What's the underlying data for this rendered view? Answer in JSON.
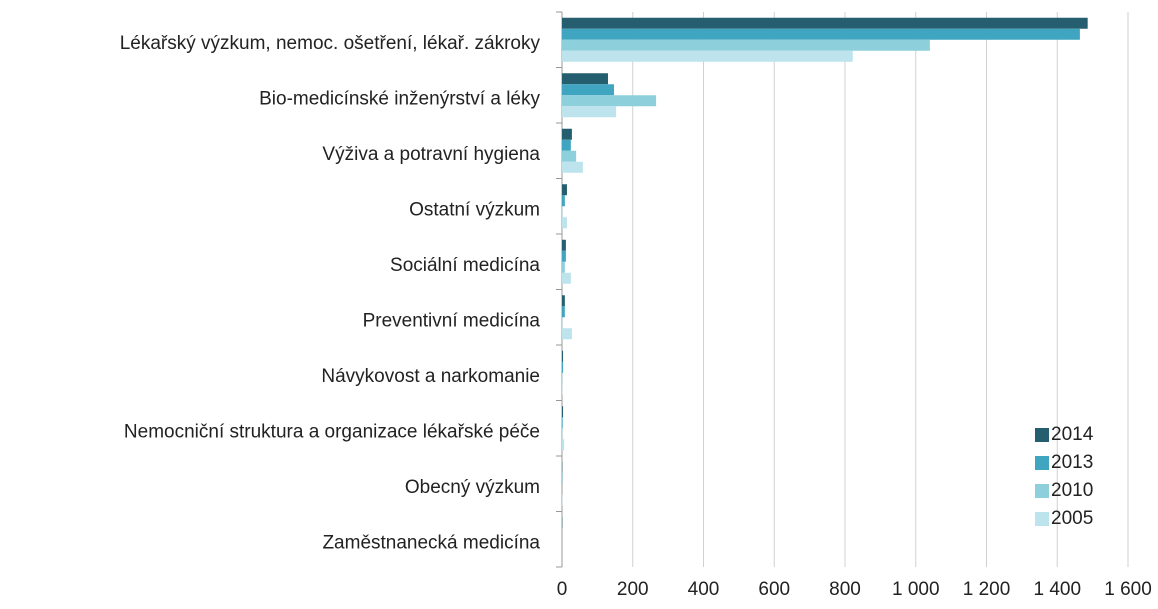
{
  "chart_data": {
    "type": "barh",
    "categories": [
      "Lékařský výzkum, nemoc. ošetření, lékař. zákroky",
      "Bio-medicínské inženýrství a léky",
      "Výživa a potravní hygiena",
      "Ostatní výzkum",
      "Sociální medicína",
      "Preventivní medicína",
      "Návykovost a narkomanie",
      "Nemocniční struktura a organizace lékařské péče",
      "Obecný výzkum",
      "Zaměstnanecká medicína"
    ],
    "series": [
      {
        "name": "2014",
        "color": "#255e6e",
        "values": [
          1486,
          130,
          28,
          14,
          11,
          8,
          3,
          3,
          1,
          1
        ]
      },
      {
        "name": "2013",
        "color": "#3fa5c0",
        "values": [
          1464,
          147,
          25,
          8,
          11,
          8,
          3,
          2,
          1,
          0
        ]
      },
      {
        "name": "2010",
        "color": "#8ecfdc",
        "values": [
          1040,
          266,
          40,
          1,
          8,
          1,
          1,
          1,
          0,
          0
        ]
      },
      {
        "name": "2005",
        "color": "#bde3ec",
        "values": [
          822,
          153,
          59,
          14,
          25,
          28,
          1,
          6,
          1,
          0
        ]
      }
    ],
    "xlim": [
      0,
      1600
    ],
    "xticks": [
      0,
      200,
      400,
      600,
      800,
      {
        "value": 1000,
        "label": "1 000"
      },
      {
        "value": 1200,
        "label": "1 200"
      },
      {
        "value": 1400,
        "label": "1 400"
      },
      {
        "value": 1600,
        "label": "1 600"
      }
    ],
    "grid": true,
    "legend": "lower right"
  }
}
